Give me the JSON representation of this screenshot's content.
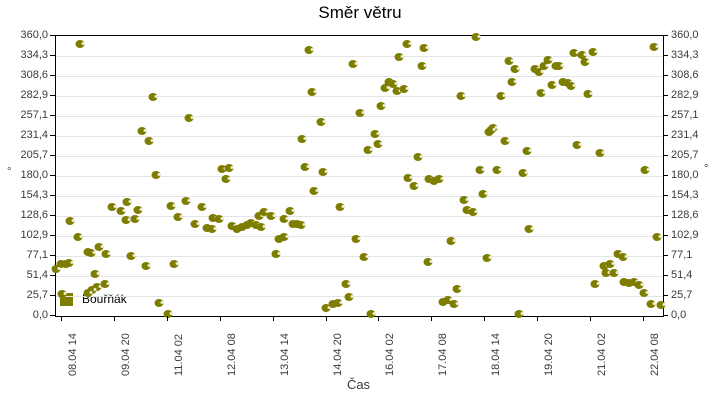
{
  "colors": {
    "marker": "#7d7d00",
    "grid": "#e4e4e4",
    "axis": "#000000",
    "tick_text": "#3a3a3a",
    "background": "#ffffff"
  },
  "chart_data": {
    "type": "scatter",
    "title": "Směr větru",
    "xlabel": "Čas",
    "ylabel": "°",
    "ylim": [
      0,
      360
    ],
    "grid": "horizontal",
    "legend_position": "bottom-left-inside",
    "y_tick_labels": [
      "360,0",
      "334,3",
      "308,6",
      "282,9",
      "257,1",
      "231,4",
      "205,7",
      "180,0",
      "154,3",
      "128,6",
      "102,9",
      "77,1",
      "51,4",
      "25,7",
      "0,0"
    ],
    "x_tick_labels": [
      "08.04 14",
      "09.04 20",
      "11.04 02",
      "12.04 08",
      "13.04 14",
      "14.04 20",
      "16.04 02",
      "17.04 08",
      "18.04 14",
      "19.04 20",
      "21.04 02",
      "22.04 08"
    ],
    "x_tick_interval_hours": 30,
    "x_unit": "hours since 08.04 14:00",
    "series": [
      {
        "name": "Bouřňák",
        "color": "#7d7d00",
        "points_h_deg": [
          [
            13.6,
            349.7
          ],
          [
            54.7,
            281.9
          ],
          [
            75.1,
            254.6
          ],
          [
            48.7,
            237.4
          ],
          [
            52.5,
            224.6
          ],
          [
            94,
            188.6
          ],
          [
            97.8,
            189.9
          ],
          [
            56.6,
            181.3
          ],
          [
            96.2,
            176.1
          ],
          [
            143.1,
            342.4
          ],
          [
            198.5,
            349.7
          ],
          [
            208.3,
            344.6
          ],
          [
            194.3,
            333.4
          ],
          [
            168.1,
            324
          ],
          [
            207.3,
            321.8
          ],
          [
            188.7,
            300.4
          ],
          [
            190.8,
            298.3
          ],
          [
            186,
            292.7
          ],
          [
            192.8,
            288.9
          ],
          [
            197.2,
            291.4
          ],
          [
            229.4,
            282.9
          ],
          [
            144.7,
            288
          ],
          [
            183.9,
            270
          ],
          [
            172.1,
            260.6
          ],
          [
            150,
            249.8
          ],
          [
            139.1,
            227.9
          ],
          [
            180.4,
            233.6
          ],
          [
            182.1,
            221.1
          ],
          [
            176.4,
            213.8
          ],
          [
            204.9,
            204.4
          ],
          [
            140.8,
            191.6
          ],
          [
            151.1,
            184.8
          ],
          [
            237.7,
            359.1
          ],
          [
            338.3,
            345.4
          ],
          [
            293.4,
            338.1
          ],
          [
            297.6,
            336
          ],
          [
            304.1,
            339.1
          ],
          [
            299.3,
            326.1
          ],
          [
            256.4,
            328.3
          ],
          [
            278.7,
            328.7
          ],
          [
            276.2,
            321.8
          ],
          [
            283.2,
            321.4
          ],
          [
            284.9,
            321.4
          ],
          [
            259.6,
            317.9
          ],
          [
            271.1,
            317.9
          ],
          [
            273.4,
            313.3
          ],
          [
            257.9,
            301.2
          ],
          [
            286.8,
            300.9
          ],
          [
            289.8,
            299.6
          ],
          [
            291.5,
            296.1
          ],
          [
            280.6,
            297
          ],
          [
            274.5,
            287.1
          ],
          [
            251.9,
            283.2
          ],
          [
            300.9,
            285.4
          ],
          [
            247.5,
            242.1
          ],
          [
            244.9,
            236.1
          ],
          [
            246.4,
            239.1
          ],
          [
            254.3,
            225.4
          ],
          [
            266.4,
            211.8
          ],
          [
            295.1,
            219.9
          ],
          [
            307.7,
            210
          ],
          [
            240,
            187.7
          ],
          [
            249.6,
            187.7
          ],
          [
            264.3,
            183.9
          ],
          [
            333.6,
            187.7
          ],
          [
            31.5,
            140.6
          ],
          [
            37,
            135
          ],
          [
            40.4,
            147
          ],
          [
            46.6,
            136.7
          ],
          [
            7.9,
            122.1
          ],
          [
            39.8,
            123.9
          ],
          [
            44.5,
            125.1
          ],
          [
            64.9,
            141.4
          ],
          [
            73.4,
            147.9
          ],
          [
            69.1,
            126.9
          ],
          [
            82.6,
            140.6
          ],
          [
            89.1,
            125.6
          ],
          [
            92.3,
            125.1
          ],
          [
            78.8,
            118.7
          ],
          [
            85.3,
            113.1
          ],
          [
            88.1,
            112.3
          ],
          [
            99.8,
            115.7
          ],
          [
            102.5,
            112.3
          ],
          [
            105.1,
            114.9
          ],
          [
            108.1,
            117
          ],
          [
            110.2,
            119.6
          ],
          [
            113,
            117.4
          ],
          [
            114.7,
            128.1
          ],
          [
            12.3,
            101.6
          ],
          [
            24.5,
            88.3
          ],
          [
            17.9,
            82.3
          ],
          [
            19.8,
            81
          ],
          [
            28.3,
            80.1
          ],
          [
            3,
            66.4
          ],
          [
            5.8,
            67.2
          ],
          [
            7.5,
            67.7
          ],
          [
            0,
            60
          ],
          [
            42.6,
            77.1
          ],
          [
            50.9,
            64.3
          ],
          [
            67,
            66.4
          ],
          [
            22.1,
            53.6
          ],
          [
            23.4,
            37.3
          ],
          [
            27.6,
            40.7
          ],
          [
            20.4,
            33.8
          ],
          [
            3.4,
            27.9
          ],
          [
            17.9,
            29.2
          ],
          [
            58.5,
            17.1
          ],
          [
            63.2,
            2.1
          ],
          [
            146.2,
            160.7
          ],
          [
            199.1,
            177.9
          ],
          [
            202.8,
            167.1
          ],
          [
            211.3,
            175.7
          ],
          [
            214.2,
            173.6
          ],
          [
            217,
            176.6
          ],
          [
            160.9,
            140.1
          ],
          [
            117.6,
            133.7
          ],
          [
            121.7,
            128.6
          ],
          [
            128.9,
            125.1
          ],
          [
            132.6,
            135
          ],
          [
            134,
            118.7
          ],
          [
            136.4,
            117.9
          ],
          [
            138.7,
            117
          ],
          [
            116,
            114.9
          ],
          [
            126.4,
            99.4
          ],
          [
            129.2,
            102
          ],
          [
            124.5,
            80.1
          ],
          [
            169.8,
            98.6
          ],
          [
            174.2,
            75.9
          ],
          [
            223.6,
            96.4
          ],
          [
            210.4,
            69.4
          ],
          [
            164.2,
            41.6
          ],
          [
            166,
            24.9
          ],
          [
            152.8,
            10.7
          ],
          [
            156.6,
            15
          ],
          [
            159.4,
            17.1
          ],
          [
            178.3,
            2.1
          ],
          [
            227,
            34.3
          ],
          [
            218.9,
            18
          ],
          [
            221.7,
            20.6
          ],
          [
            225.5,
            15
          ],
          [
            231.1,
            149.1
          ],
          [
            232.6,
            135.9
          ],
          [
            235.9,
            134.1
          ],
          [
            241.5,
            156.4
          ],
          [
            267.9,
            112.3
          ],
          [
            340.2,
            101.6
          ],
          [
            244,
            75
          ],
          [
            317.9,
            79.3
          ],
          [
            321.1,
            76.3
          ],
          [
            310,
            64.3
          ],
          [
            313.6,
            66.4
          ],
          [
            311.3,
            55.7
          ],
          [
            315.7,
            55.7
          ],
          [
            305.3,
            41.6
          ],
          [
            321.3,
            43.7
          ],
          [
            324.3,
            42
          ],
          [
            327.3,
            43.7
          ],
          [
            330.2,
            39.9
          ],
          [
            332.7,
            29.2
          ],
          [
            336.8,
            15
          ],
          [
            342.5,
            13.8
          ],
          [
            262.2,
            2.1
          ]
        ]
      }
    ]
  }
}
